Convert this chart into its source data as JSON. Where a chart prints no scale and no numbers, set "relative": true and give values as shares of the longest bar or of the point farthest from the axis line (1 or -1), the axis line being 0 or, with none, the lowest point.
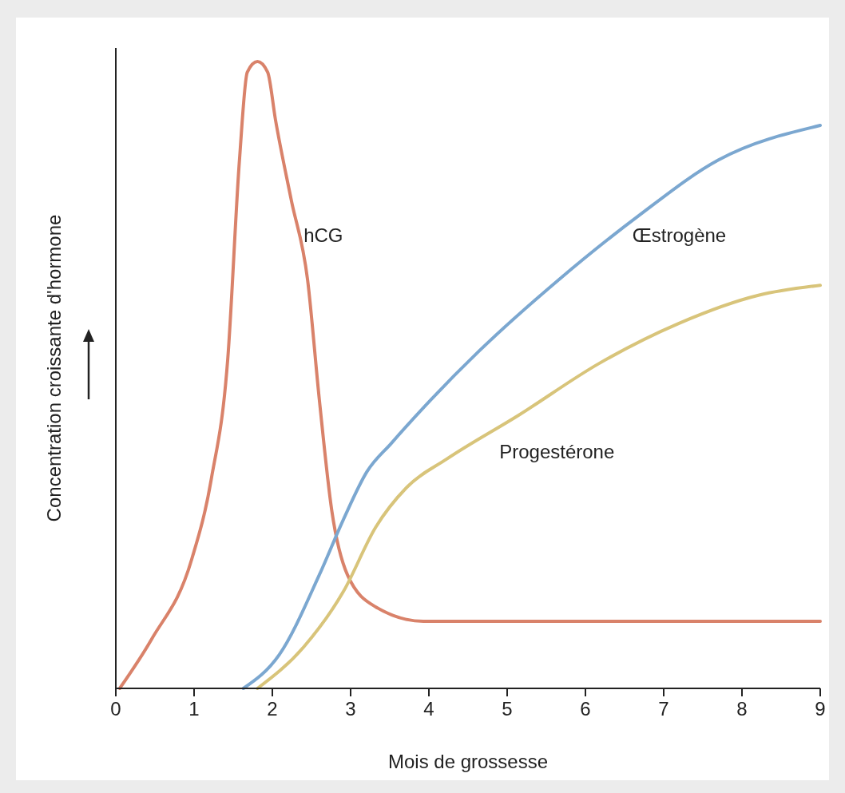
{
  "chart_data": {
    "type": "line",
    "relative": true,
    "xlabel": "Mois de grossesse",
    "ylabel": "Concentration croissante d'hormone",
    "xlim": [
      0,
      9
    ],
    "xticks": [
      0,
      1,
      2,
      3,
      4,
      5,
      6,
      7,
      8,
      9
    ],
    "grid": false,
    "marker": "none",
    "line_style": "solid",
    "series": [
      {
        "name": "hCG",
        "color": "#d9826a",
        "x": [
          0.05,
          0.46,
          0.97,
          1.22,
          1.43,
          1.58,
          1.68,
          1.81,
          1.94,
          2.04,
          2.24,
          2.45,
          2.6,
          2.76,
          2.96,
          3.32,
          3.93,
          9
        ],
        "values": [
          0,
          0.079,
          0.206,
          0.334,
          0.525,
          0.843,
          0.983,
          1,
          0.983,
          0.907,
          0.78,
          0.652,
          0.461,
          0.283,
          0.181,
          0.13,
          0.107,
          0.107
        ]
      },
      {
        "name": "Œstrogène",
        "color": "#7ba7d0",
        "x": [
          1.63,
          2.09,
          2.6,
          2.91,
          3.21,
          3.52,
          4.03,
          4.64,
          5.66,
          6.68,
          7.7,
          9
        ],
        "values": [
          0,
          0.054,
          0.181,
          0.27,
          0.346,
          0.391,
          0.461,
          0.538,
          0.652,
          0.754,
          0.843,
          0.898
        ]
      },
      {
        "name": "Progestérone",
        "color": "#d8c47a",
        "x": [
          1.81,
          2.4,
          2.91,
          3.32,
          3.72,
          4.23,
          5.15,
          6.17,
          7.19,
          8.21,
          9
        ],
        "values": [
          0,
          0.066,
          0.155,
          0.257,
          0.321,
          0.366,
          0.436,
          0.518,
          0.582,
          0.627,
          0.643
        ]
      }
    ]
  }
}
